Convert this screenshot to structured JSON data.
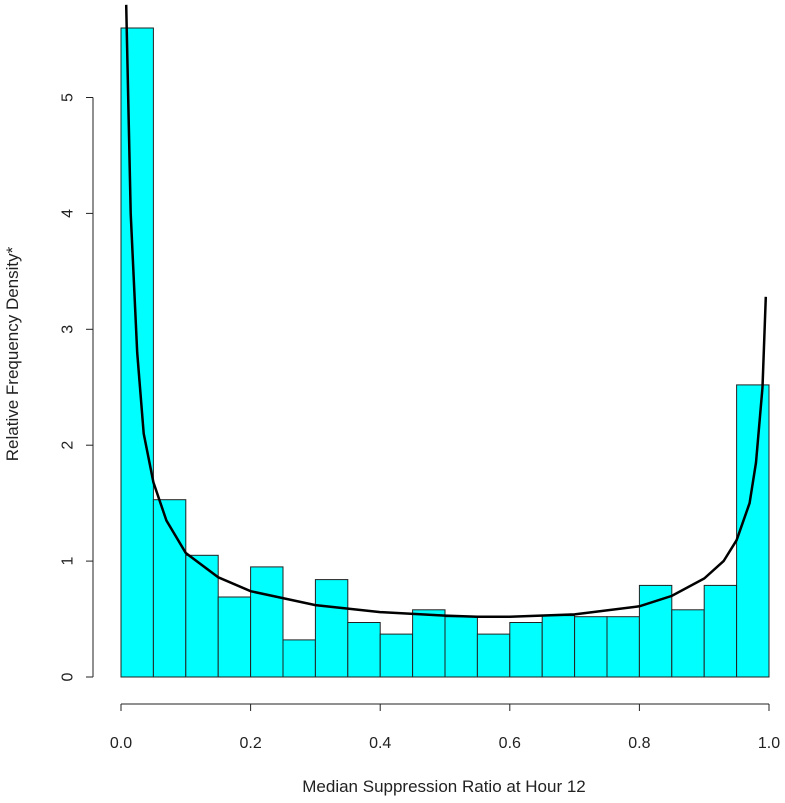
{
  "chart_data": {
    "type": "bar",
    "title": "",
    "xlabel": "Median Suppression Ratio at Hour 12",
    "ylabel": "Relative Frequency Density*",
    "xlim": [
      0,
      1
    ],
    "ylim": [
      0,
      5.6
    ],
    "bin_width": 0.05,
    "bin_starts": [
      0.0,
      0.05,
      0.1,
      0.15,
      0.2,
      0.25,
      0.3,
      0.35,
      0.4,
      0.45,
      0.5,
      0.55,
      0.6,
      0.65,
      0.7,
      0.75,
      0.8,
      0.85,
      0.9,
      0.95
    ],
    "values": [
      5.6,
      1.53,
      1.05,
      0.69,
      0.95,
      0.32,
      0.84,
      0.47,
      0.37,
      0.58,
      0.52,
      0.37,
      0.47,
      0.53,
      0.52,
      0.52,
      0.79,
      0.58,
      0.79,
      2.52
    ],
    "x_ticks": [
      0.0,
      0.2,
      0.4,
      0.6,
      0.8,
      1.0
    ],
    "x_tick_labels": [
      "0.0",
      "0.2",
      "0.4",
      "0.6",
      "0.8",
      "1.0"
    ],
    "y_ticks": [
      0,
      1,
      2,
      3,
      4,
      5
    ],
    "y_tick_labels": [
      "0",
      "1",
      "2",
      "3",
      "4",
      "5"
    ],
    "density_curve": {
      "x": [
        0.008,
        0.015,
        0.025,
        0.035,
        0.05,
        0.07,
        0.1,
        0.15,
        0.2,
        0.3,
        0.4,
        0.5,
        0.55,
        0.6,
        0.7,
        0.8,
        0.85,
        0.9,
        0.93,
        0.95,
        0.97,
        0.98,
        0.99,
        0.995
      ],
      "y": [
        5.8,
        4.0,
        2.8,
        2.1,
        1.68,
        1.35,
        1.07,
        0.86,
        0.74,
        0.62,
        0.56,
        0.53,
        0.52,
        0.52,
        0.54,
        0.61,
        0.7,
        0.85,
        1.0,
        1.18,
        1.5,
        1.85,
        2.5,
        3.28
      ]
    },
    "grid": false,
    "legend": "none"
  }
}
